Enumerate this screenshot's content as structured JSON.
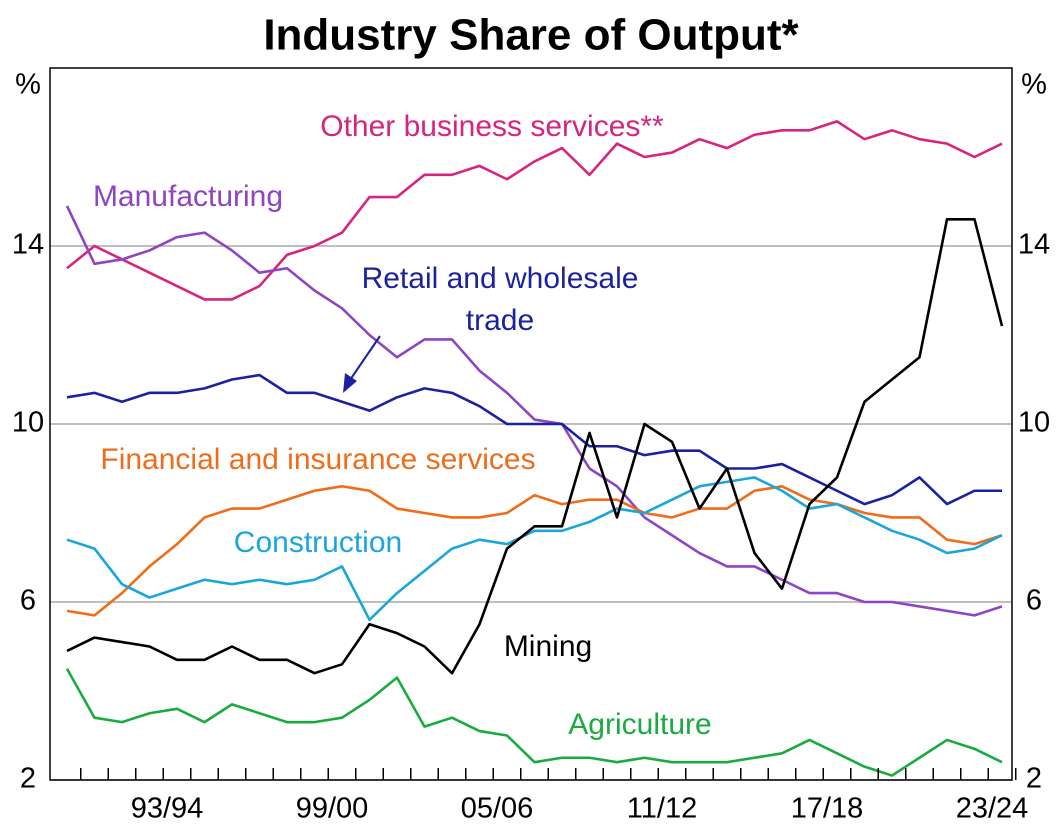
{
  "chart_data": {
    "type": "line",
    "title": "Industry Share of Output*",
    "y_unit": "%",
    "y2_unit": "%",
    "categories": [
      null,
      null,
      null,
      null,
      "93/94",
      null,
      null,
      null,
      null,
      null,
      "99/00",
      null,
      null,
      null,
      null,
      null,
      "05/06",
      null,
      null,
      null,
      null,
      null,
      "11/12",
      null,
      null,
      null,
      null,
      null,
      "17/18",
      null,
      null,
      null,
      null,
      null,
      "23/24"
    ],
    "ylim": [
      2,
      18
    ],
    "yticks": [
      2,
      6,
      10,
      14
    ],
    "y2lim": [
      2,
      18
    ],
    "y2ticks": [
      2,
      6,
      10,
      14
    ],
    "grid": true,
    "series": [
      {
        "name": "Other business services**",
        "color": "#d6247f",
        "values": [
          13.5,
          14.0,
          13.7,
          13.4,
          13.1,
          12.8,
          12.8,
          13.1,
          13.8,
          14.0,
          14.3,
          15.1,
          15.1,
          15.6,
          15.6,
          15.8,
          15.5,
          15.9,
          16.2,
          15.6,
          16.3,
          16.0,
          16.1,
          16.4,
          16.2,
          16.5,
          16.6,
          16.6,
          16.8,
          16.4,
          16.6,
          16.4,
          16.3,
          16.0,
          16.3
        ]
      },
      {
        "name": "Manufacturing",
        "color": "#8e44c4",
        "values": [
          14.9,
          13.6,
          13.7,
          13.9,
          14.2,
          14.3,
          13.9,
          13.4,
          13.5,
          13.0,
          12.6,
          12.0,
          11.5,
          11.9,
          11.9,
          11.2,
          10.7,
          10.1,
          10.0,
          9.0,
          8.6,
          7.9,
          7.5,
          7.1,
          6.8,
          6.8,
          6.5,
          6.2,
          6.2,
          6.0,
          6.0,
          5.9,
          5.8,
          5.7,
          5.9
        ]
      },
      {
        "name": "Retail and wholesale trade",
        "color": "#1a22a0",
        "values": [
          10.6,
          10.7,
          10.5,
          10.7,
          10.7,
          10.8,
          11.0,
          11.1,
          10.7,
          10.7,
          10.5,
          10.3,
          10.6,
          10.8,
          10.7,
          10.4,
          10.0,
          10.0,
          10.0,
          9.5,
          9.5,
          9.3,
          9.4,
          9.4,
          9.0,
          9.0,
          9.1,
          8.8,
          8.5,
          8.2,
          8.4,
          8.8,
          8.2,
          8.5,
          8.5
        ]
      },
      {
        "name": "Financial and insurance services",
        "color": "#ee6c1a",
        "values": [
          5.8,
          5.7,
          6.2,
          6.8,
          7.3,
          7.9,
          8.1,
          8.1,
          8.3,
          8.5,
          8.6,
          8.5,
          8.1,
          8.0,
          7.9,
          7.9,
          8.0,
          8.4,
          8.2,
          8.3,
          8.3,
          8.0,
          7.9,
          8.1,
          8.1,
          8.5,
          8.6,
          8.3,
          8.2,
          8.0,
          7.9,
          7.9,
          7.4,
          7.3,
          7.5
        ]
      },
      {
        "name": "Construction",
        "color": "#1aa6dc",
        "values": [
          7.4,
          7.2,
          6.4,
          6.1,
          6.3,
          6.5,
          6.4,
          6.5,
          6.4,
          6.5,
          6.8,
          5.6,
          6.2,
          6.7,
          7.2,
          7.4,
          7.3,
          7.6,
          7.6,
          7.8,
          8.1,
          8.0,
          8.3,
          8.6,
          8.7,
          8.8,
          8.5,
          8.1,
          8.2,
          7.9,
          7.6,
          7.4,
          7.1,
          7.2,
          7.5
        ]
      },
      {
        "name": "Mining",
        "color": "#000000",
        "values": [
          4.9,
          5.2,
          5.1,
          5.0,
          4.7,
          4.7,
          5.0,
          4.7,
          4.7,
          4.4,
          4.6,
          5.5,
          5.3,
          5.0,
          4.4,
          5.5,
          7.2,
          7.7,
          7.7,
          9.8,
          7.9,
          10.0,
          9.6,
          8.1,
          9.0,
          7.1,
          6.3,
          8.2,
          8.8,
          10.5,
          11.0,
          11.5,
          14.6,
          14.6,
          12.2
        ]
      },
      {
        "name": "Agriculture",
        "color": "#1aab40",
        "values": [
          4.5,
          3.4,
          3.3,
          3.5,
          3.6,
          3.3,
          3.7,
          3.5,
          3.3,
          3.3,
          3.4,
          3.8,
          4.3,
          3.2,
          3.4,
          3.1,
          3.0,
          2.4,
          2.5,
          2.5,
          2.4,
          2.5,
          2.4,
          2.4,
          2.4,
          2.5,
          2.6,
          2.9,
          2.6,
          2.3,
          2.1,
          2.5,
          2.9,
          2.7,
          2.4
        ]
      }
    ]
  }
}
